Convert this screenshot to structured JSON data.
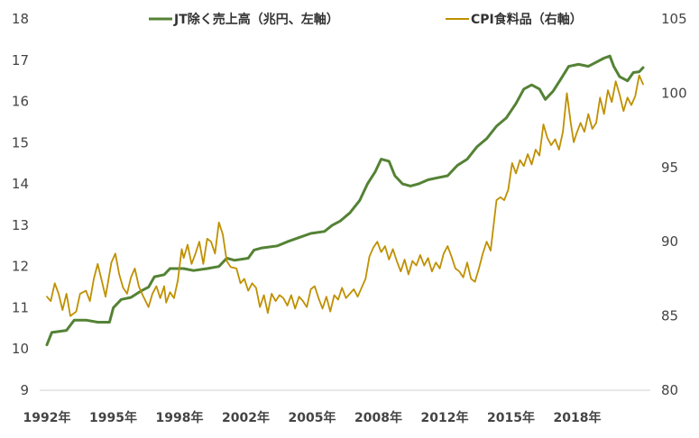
{
  "chart_data": {
    "type": "line",
    "title": "",
    "xlabel": "",
    "ylabel_left": "",
    "ylabel_right": "",
    "x_tick_labels": [
      "1992年",
      "1995年",
      "1998年",
      "2002年",
      "2005年",
      "2008年",
      "2012年",
      "2015年",
      "2018年"
    ],
    "y_left": {
      "min": 9,
      "max": 18,
      "ticks": [
        "9",
        "10",
        "11",
        "12",
        "13",
        "14",
        "15",
        "16",
        "17",
        "18"
      ]
    },
    "y_right": {
      "min": 80,
      "max": 105,
      "ticks": [
        "80",
        "85",
        "90",
        "95",
        "100",
        "105"
      ]
    },
    "grid": false,
    "legend_position": "top",
    "series": [
      {
        "name": "JT除く売上高（兆円、左軸）",
        "axis": "left",
        "color": "#548235",
        "points": [
          [
            1992.0,
            10.1
          ],
          [
            1992.25,
            10.4
          ],
          [
            1993.0,
            10.45
          ],
          [
            1993.4,
            10.7
          ],
          [
            1994.0,
            10.7
          ],
          [
            1994.6,
            10.65
          ],
          [
            1995.2,
            10.65
          ],
          [
            1995.4,
            11.0
          ],
          [
            1995.8,
            11.2
          ],
          [
            1996.3,
            11.25
          ],
          [
            1996.8,
            11.4
          ],
          [
            1997.2,
            11.5
          ],
          [
            1997.5,
            11.75
          ],
          [
            1998.0,
            11.8
          ],
          [
            1998.3,
            11.95
          ],
          [
            1999.0,
            11.95
          ],
          [
            1999.5,
            11.9
          ],
          [
            2000.2,
            11.95
          ],
          [
            2000.8,
            12.0
          ],
          [
            2001.2,
            12.2
          ],
          [
            2001.6,
            12.15
          ],
          [
            2002.3,
            12.2
          ],
          [
            2002.6,
            12.4
          ],
          [
            2003.0,
            12.45
          ],
          [
            2003.8,
            12.5
          ],
          [
            2004.3,
            12.6
          ],
          [
            2004.9,
            12.7
          ],
          [
            2005.5,
            12.8
          ],
          [
            2006.2,
            12.85
          ],
          [
            2006.6,
            13.0
          ],
          [
            2007.0,
            13.1
          ],
          [
            2007.5,
            13.3
          ],
          [
            2008.0,
            13.6
          ],
          [
            2008.4,
            14.0
          ],
          [
            2008.8,
            14.3
          ],
          [
            2009.1,
            14.6
          ],
          [
            2009.5,
            14.55
          ],
          [
            2009.8,
            14.2
          ],
          [
            2010.2,
            14.0
          ],
          [
            2010.6,
            13.95
          ],
          [
            2011.0,
            14.0
          ],
          [
            2011.5,
            14.1
          ],
          [
            2012.0,
            14.15
          ],
          [
            2012.5,
            14.2
          ],
          [
            2013.0,
            14.45
          ],
          [
            2013.5,
            14.6
          ],
          [
            2014.0,
            14.9
          ],
          [
            2014.5,
            15.1
          ],
          [
            2015.0,
            15.4
          ],
          [
            2015.5,
            15.6
          ],
          [
            2016.0,
            15.95
          ],
          [
            2016.4,
            16.3
          ],
          [
            2016.8,
            16.4
          ],
          [
            2017.2,
            16.3
          ],
          [
            2017.5,
            16.05
          ],
          [
            2017.9,
            16.25
          ],
          [
            2018.3,
            16.55
          ],
          [
            2018.7,
            16.85
          ],
          [
            2019.2,
            16.9
          ],
          [
            2019.7,
            16.85
          ],
          [
            2020.1,
            16.95
          ],
          [
            2020.5,
            17.05
          ],
          [
            2020.8,
            17.1
          ],
          [
            2021.0,
            16.85
          ],
          [
            2021.3,
            16.6
          ],
          [
            2021.7,
            16.5
          ],
          [
            2022.0,
            16.7
          ],
          [
            2022.3,
            16.72
          ],
          [
            2022.5,
            16.82
          ]
        ]
      },
      {
        "name": "CPI食料品（右軸）",
        "axis": "right",
        "color": "#BF9000",
        "points": [
          [
            1992.0,
            86.3
          ],
          [
            1992.2,
            86.0
          ],
          [
            1992.4,
            87.2
          ],
          [
            1992.6,
            86.5
          ],
          [
            1992.8,
            85.4
          ],
          [
            1993.0,
            86.5
          ],
          [
            1993.2,
            85.0
          ],
          [
            1993.5,
            85.3
          ],
          [
            1993.7,
            86.5
          ],
          [
            1994.0,
            86.7
          ],
          [
            1994.2,
            86.0
          ],
          [
            1994.4,
            87.5
          ],
          [
            1994.6,
            88.5
          ],
          [
            1994.8,
            87.4
          ],
          [
            1995.0,
            86.3
          ],
          [
            1995.3,
            88.6
          ],
          [
            1995.5,
            89.2
          ],
          [
            1995.7,
            87.8
          ],
          [
            1995.9,
            86.9
          ],
          [
            1996.1,
            86.5
          ],
          [
            1996.3,
            87.6
          ],
          [
            1996.5,
            88.2
          ],
          [
            1996.7,
            87.0
          ],
          [
            1996.9,
            86.4
          ],
          [
            1997.2,
            85.6
          ],
          [
            1997.4,
            86.5
          ],
          [
            1997.6,
            87.0
          ],
          [
            1997.8,
            86.2
          ],
          [
            1998.0,
            87.0
          ],
          [
            1998.1,
            85.9
          ],
          [
            1998.3,
            86.6
          ],
          [
            1998.5,
            86.2
          ],
          [
            1998.7,
            87.4
          ],
          [
            1998.9,
            89.5
          ],
          [
            1999.0,
            88.9
          ],
          [
            1999.2,
            89.8
          ],
          [
            1999.4,
            88.5
          ],
          [
            1999.6,
            89.2
          ],
          [
            1999.8,
            90.0
          ],
          [
            2000.0,
            88.5
          ],
          [
            2000.2,
            90.2
          ],
          [
            2000.4,
            90.0
          ],
          [
            2000.6,
            89.2
          ],
          [
            2000.8,
            91.3
          ],
          [
            2001.0,
            90.5
          ],
          [
            2001.2,
            88.7
          ],
          [
            2001.4,
            88.3
          ],
          [
            2001.7,
            88.2
          ],
          [
            2001.9,
            87.2
          ],
          [
            2002.1,
            87.5
          ],
          [
            2002.3,
            86.7
          ],
          [
            2002.5,
            87.2
          ],
          [
            2002.7,
            86.9
          ],
          [
            2002.9,
            85.6
          ],
          [
            2003.1,
            86.4
          ],
          [
            2003.3,
            85.2
          ],
          [
            2003.5,
            86.5
          ],
          [
            2003.7,
            86.0
          ],
          [
            2003.9,
            86.4
          ],
          [
            2004.1,
            86.2
          ],
          [
            2004.3,
            85.7
          ],
          [
            2004.5,
            86.4
          ],
          [
            2004.7,
            85.5
          ],
          [
            2004.9,
            86.3
          ],
          [
            2005.1,
            86.0
          ],
          [
            2005.3,
            85.6
          ],
          [
            2005.5,
            86.8
          ],
          [
            2005.7,
            87.0
          ],
          [
            2005.9,
            86.2
          ],
          [
            2006.1,
            85.5
          ],
          [
            2006.3,
            86.3
          ],
          [
            2006.5,
            85.3
          ],
          [
            2006.7,
            86.4
          ],
          [
            2006.9,
            86.1
          ],
          [
            2007.1,
            86.9
          ],
          [
            2007.3,
            86.2
          ],
          [
            2007.5,
            86.5
          ],
          [
            2007.7,
            86.8
          ],
          [
            2007.9,
            86.3
          ],
          [
            2008.1,
            86.9
          ],
          [
            2008.3,
            87.5
          ],
          [
            2008.5,
            89.0
          ],
          [
            2008.7,
            89.6
          ],
          [
            2008.9,
            90.0
          ],
          [
            2009.1,
            89.3
          ],
          [
            2009.3,
            89.7
          ],
          [
            2009.5,
            88.8
          ],
          [
            2009.7,
            89.5
          ],
          [
            2009.9,
            88.7
          ],
          [
            2010.1,
            88.0
          ],
          [
            2010.3,
            88.8
          ],
          [
            2010.5,
            87.8
          ],
          [
            2010.7,
            88.7
          ],
          [
            2010.9,
            88.4
          ],
          [
            2011.1,
            89.1
          ],
          [
            2011.3,
            88.4
          ],
          [
            2011.5,
            88.9
          ],
          [
            2011.7,
            88.0
          ],
          [
            2011.9,
            88.6
          ],
          [
            2012.1,
            88.2
          ],
          [
            2012.3,
            89.2
          ],
          [
            2012.5,
            89.7
          ],
          [
            2012.7,
            89.0
          ],
          [
            2012.9,
            88.2
          ],
          [
            2013.1,
            88.0
          ],
          [
            2013.3,
            87.6
          ],
          [
            2013.5,
            88.6
          ],
          [
            2013.7,
            87.5
          ],
          [
            2013.9,
            87.3
          ],
          [
            2014.1,
            88.2
          ],
          [
            2014.3,
            89.2
          ],
          [
            2014.5,
            90.0
          ],
          [
            2014.7,
            89.4
          ],
          [
            2015.0,
            92.8
          ],
          [
            2015.2,
            93.0
          ],
          [
            2015.4,
            92.8
          ],
          [
            2015.6,
            93.5
          ],
          [
            2015.8,
            95.3
          ],
          [
            2016.0,
            94.6
          ],
          [
            2016.2,
            95.5
          ],
          [
            2016.4,
            95.1
          ],
          [
            2016.6,
            95.9
          ],
          [
            2016.8,
            95.2
          ],
          [
            2017.0,
            96.2
          ],
          [
            2017.2,
            95.8
          ],
          [
            2017.4,
            97.9
          ],
          [
            2017.6,
            97.0
          ],
          [
            2017.8,
            96.5
          ],
          [
            2018.0,
            96.9
          ],
          [
            2018.2,
            96.2
          ],
          [
            2018.4,
            97.4
          ],
          [
            2018.6,
            100.0
          ],
          [
            2018.8,
            98.0
          ],
          [
            2018.95,
            96.7
          ],
          [
            2019.1,
            97.3
          ],
          [
            2019.3,
            98.0
          ],
          [
            2019.5,
            97.4
          ],
          [
            2019.7,
            98.6
          ],
          [
            2019.9,
            97.6
          ],
          [
            2020.1,
            98.0
          ],
          [
            2020.3,
            99.7
          ],
          [
            2020.5,
            98.6
          ],
          [
            2020.7,
            100.2
          ],
          [
            2020.9,
            99.4
          ],
          [
            2021.1,
            100.8
          ],
          [
            2021.3,
            99.9
          ],
          [
            2021.5,
            98.8
          ],
          [
            2021.7,
            99.7
          ],
          [
            2021.9,
            99.2
          ],
          [
            2022.1,
            99.8
          ],
          [
            2022.3,
            101.2
          ],
          [
            2022.5,
            100.6
          ]
        ]
      }
    ]
  }
}
